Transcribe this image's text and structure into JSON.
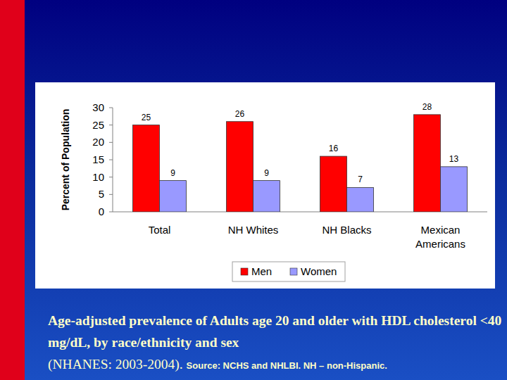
{
  "chart_data": {
    "type": "bar",
    "title": "Age-adjusted prevalence of Adults age 20 and older with HDL cholesterol <40 mg/dL, by race/ethnicity and sex",
    "subtitle": "(NHANES: 2003-2004).",
    "annotations": [
      "Source: NCHS and NHLBI. NH – non-Hispanic."
    ],
    "y_label": "Percent of Population",
    "categories": [
      "Total",
      "NH Whites",
      "NH Blacks",
      "Mexican Americans"
    ],
    "series": [
      {
        "name": "Men",
        "color": "#ff0000",
        "values": [
          25,
          26,
          16,
          28
        ]
      },
      {
        "name": "Women",
        "color": "#9999ff",
        "values": [
          9,
          9,
          7,
          13
        ]
      }
    ],
    "ylim": [
      0,
      30
    ],
    "yticks": [
      0,
      5,
      10,
      15,
      20,
      25,
      30
    ],
    "grid": false,
    "legend": "bottom",
    "data_labels": true
  }
}
